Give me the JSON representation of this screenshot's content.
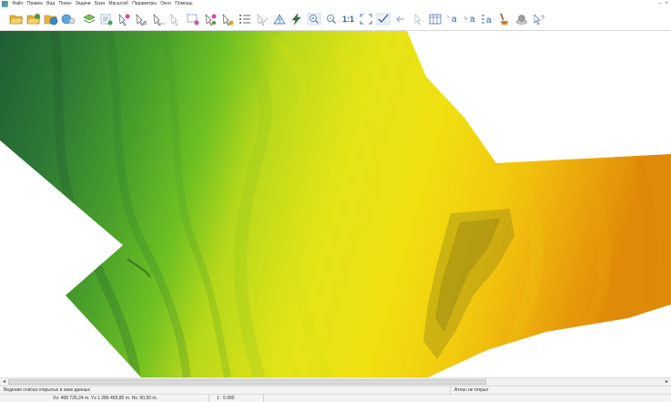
{
  "menu": {
    "items": [
      "Файл",
      "Правка",
      "Вид",
      "Поиск",
      "Задачи",
      "База",
      "Масштаб",
      "Параметры",
      "Окно",
      "Помощь"
    ],
    "window_controls": [
      "–",
      "×"
    ]
  },
  "toolbar": {
    "buttons": [
      {
        "icon": "open-folder-icon"
      },
      {
        "icon": "open-folder-plus-icon"
      },
      {
        "icon": "folder-globe-icon"
      },
      {
        "icon": "database-icon"
      },
      {
        "icon": "layers-icon"
      },
      {
        "icon": "layer-properties-icon"
      },
      {
        "icon": "pick-icon"
      },
      {
        "icon": "pick-text-icon"
      },
      {
        "icon": "pick-all-icon"
      },
      {
        "icon": "pick-clear-icon"
      },
      {
        "icon": "select-rect-icon"
      },
      {
        "icon": "select-add-icon"
      },
      {
        "icon": "select-remove-icon"
      },
      {
        "icon": "list-icon"
      },
      {
        "icon": "measure-icon"
      },
      {
        "icon": "triangulation-icon"
      },
      {
        "icon": "lightning-icon"
      },
      {
        "icon": "zoom-in-icon"
      },
      {
        "icon": "zoom-out-icon"
      },
      {
        "icon": "fit-window-icon"
      },
      {
        "icon": "check-icon"
      },
      {
        "icon": "back-icon"
      },
      {
        "icon": "cursor-icon"
      },
      {
        "icon": "table-icon"
      },
      {
        "icon": "label-a-icon"
      },
      {
        "icon": "label-move-icon"
      },
      {
        "icon": "label-list-icon"
      },
      {
        "icon": "paint-icon"
      },
      {
        "icon": "stamp-icon"
      },
      {
        "icon": "help-cursor-icon"
      }
    ],
    "scale_label": "1:1"
  },
  "status": {
    "top_left": "Ведение списка открытых в окне данных",
    "top_right": "Атлас не открыт",
    "coordinates": "Xs:  468 726,24 m.  Ys 1 286 465,85 m.  Hs:   90,50 m.",
    "scale": "1 : 5 000"
  },
  "colors": {
    "dark_green": "#2a6b36",
    "green": "#5fb82c",
    "yellow": "#e6e80c",
    "orange": "#e08a0a"
  }
}
